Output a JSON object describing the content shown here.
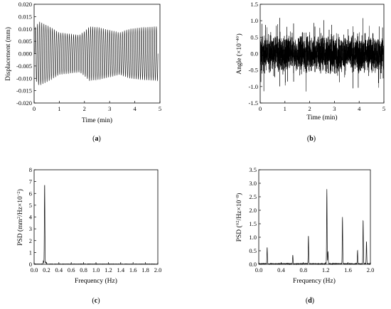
{
  "colors": {
    "axis": "#000000",
    "signal": "#111111"
  },
  "chart_data": [
    {
      "id": "a",
      "panel_label": "(a)",
      "panel_letter": "a",
      "type": "line",
      "title": "",
      "xlabel": "Time (min)",
      "ylabel": "Displacement (mm)",
      "xlim": [
        0,
        5
      ],
      "ylim": [
        -0.02,
        0.02
      ],
      "xticks": [
        "0",
        "1",
        "2",
        "3",
        "4",
        "5"
      ],
      "xtick_values": [
        0,
        1,
        2,
        3,
        4,
        5
      ],
      "yticks": [
        "-0.020",
        "-0.015",
        "-0.010",
        "-0.005",
        "0.000",
        "0.005",
        "0.010",
        "0.015",
        "0.020"
      ],
      "ytick_values": [
        -0.02,
        -0.015,
        -0.01,
        -0.005,
        0,
        0.005,
        0.01,
        0.015,
        0.02
      ],
      "grid": false,
      "series": [
        {
          "style": "oscillating signal (about 58 cycles)",
          "envelope_x": [
            0.0,
            0.2,
            0.6,
            1.0,
            1.4,
            1.8,
            2.0,
            2.2,
            2.6,
            3.0,
            3.4,
            3.8,
            4.2,
            4.6,
            4.9
          ],
          "envelope_upper": [
            0.01,
            0.013,
            0.011,
            0.0085,
            0.008,
            0.0075,
            0.009,
            0.011,
            0.0105,
            0.0095,
            0.0085,
            0.01,
            0.0105,
            0.0108,
            0.011
          ],
          "envelope_lower": [
            -0.01,
            -0.013,
            -0.011,
            -0.0085,
            -0.008,
            -0.0075,
            -0.009,
            -0.011,
            -0.0105,
            -0.0095,
            -0.0085,
            -0.01,
            -0.0105,
            -0.0108,
            -0.011
          ]
        }
      ]
    },
    {
      "id": "b",
      "panel_label": "(b)",
      "panel_letter": "b",
      "type": "line",
      "title": "",
      "xlabel": "Time (min)",
      "ylabel": "Angle (×10⁻⁴ °)",
      "ylabel_main": "Angle (×10",
      "ylabel_exp": "−4",
      "ylabel_end": "°)",
      "xlim": [
        0,
        5
      ],
      "ylim": [
        -1.5,
        1.5
      ],
      "xticks": [
        "0",
        "1",
        "2",
        "3",
        "4",
        "5"
      ],
      "xtick_values": [
        0,
        1,
        2,
        3,
        4,
        5
      ],
      "yticks": [
        "-1.5",
        "-1.0",
        "-0.5",
        "0.0",
        "0.5",
        "1.0",
        "1.5"
      ],
      "ytick_values": [
        -1.5,
        -1.0,
        -0.5,
        0,
        0.5,
        1.0,
        1.5
      ],
      "grid": false,
      "series": [
        {
          "style": "dense noise signal",
          "typical_range": [
            -0.75,
            0.75
          ],
          "peak_range": [
            -1.15,
            1.15
          ]
        }
      ]
    },
    {
      "id": "c",
      "panel_label": "(c)",
      "panel_letter": "c",
      "type": "line",
      "title": "",
      "xlabel": "Frequency (Hz)",
      "ylabel": "PSD (mm²/Hz×10⁻²)",
      "ylabel_p1": "PSD (mm",
      "ylabel_exp1": "2",
      "ylabel_p2": "/Hz×10",
      "ylabel_exp2": "−2",
      "ylabel_p3": ")",
      "xlim": [
        0,
        2.0
      ],
      "ylim": [
        0,
        8
      ],
      "xticks": [
        "0.0",
        "0.2",
        "0.4",
        "0.6",
        "0.8",
        "1.0",
        "1.2",
        "1.4",
        "1.6",
        "1.8",
        "2.0"
      ],
      "xtick_values": [
        0,
        0.2,
        0.4,
        0.6,
        0.8,
        1.0,
        1.2,
        1.4,
        1.6,
        1.8,
        2.0
      ],
      "yticks": [
        "0",
        "1",
        "2",
        "3",
        "4",
        "5",
        "6",
        "7",
        "8"
      ],
      "ytick_values": [
        0,
        1,
        2,
        3,
        4,
        5,
        6,
        7,
        8
      ],
      "grid": false,
      "series": [
        {
          "style": "spectrum",
          "peaks": [
            {
              "x": 0.17,
              "y": 6.9
            },
            {
              "x": 0.15,
              "y": 0.25
            },
            {
              "x": 0.19,
              "y": 0.18
            }
          ]
        }
      ]
    },
    {
      "id": "d",
      "panel_label": "(d)",
      "panel_letter": "d",
      "type": "line",
      "title": "",
      "xlabel": "Frequency (Hz)",
      "ylabel": "PSD (°²/Hz×10⁻⁸)",
      "ylabel_p1": "PSD (°",
      "ylabel_exp1": "2",
      "ylabel_p2": "/Hz×10",
      "ylabel_exp2": "−8",
      "ylabel_p3": ")",
      "xlim": [
        0,
        2.0
      ],
      "ylim": [
        0,
        3.5
      ],
      "xticks": [
        "0.0",
        "0.4",
        "0.8",
        "1.2",
        "1.6",
        "2.0"
      ],
      "xtick_values": [
        0,
        0.4,
        0.8,
        1.2,
        1.6,
        2.0
      ],
      "yticks": [
        "0.0",
        "0.5",
        "1.0",
        "1.5",
        "2.0",
        "2.5",
        "3.0",
        "3.5"
      ],
      "ytick_values": [
        0,
        0.5,
        1.0,
        1.5,
        2.0,
        2.5,
        3.0,
        3.5
      ],
      "grid": false,
      "series": [
        {
          "style": "spectrum",
          "peaks": [
            {
              "x": 0.15,
              "y": 0.62
            },
            {
              "x": 0.61,
              "y": 0.33
            },
            {
              "x": 0.89,
              "y": 1.05
            },
            {
              "x": 1.22,
              "y": 2.78
            },
            {
              "x": 1.24,
              "y": 0.45
            },
            {
              "x": 1.5,
              "y": 1.75
            },
            {
              "x": 1.77,
              "y": 0.5
            },
            {
              "x": 1.87,
              "y": 1.65
            },
            {
              "x": 1.93,
              "y": 0.85
            }
          ]
        }
      ]
    }
  ]
}
